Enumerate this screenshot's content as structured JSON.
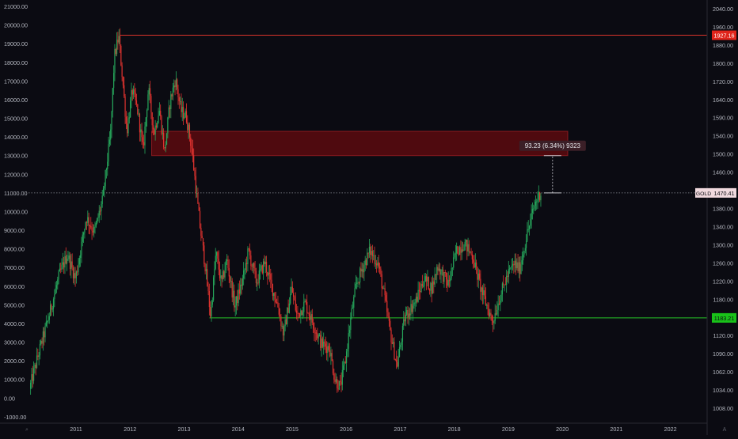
{
  "chart_data": {
    "type": "candlestick",
    "symbol": "GOLD",
    "colors": {
      "background": "#0b0b12",
      "up": "#26a65b",
      "down": "#e0332f",
      "axis_text": "#b2b5be",
      "resistance_line": "#d9342b",
      "support_line": "#27c527",
      "zone_fill": "#5c0a0f",
      "zone_border": "#8a1a1f",
      "price_tag": "#f0d9de",
      "measure_tag": "#3b1f27"
    },
    "left_axis": {
      "range": [
        -1300,
        21000
      ],
      "ticks": [
        "-1000.00",
        "0.00",
        "1000.00",
        "2000.00",
        "3000.00",
        "4000.00",
        "5000.00",
        "6000.00",
        "7000.00",
        "8000.00",
        "9000.00",
        "10000.00",
        "11000.00",
        "12000.00",
        "13000.00",
        "14000.00",
        "15000.00",
        "16000.00",
        "17000.00",
        "18000.00",
        "19000.00",
        "20000.00",
        "21000.00"
      ]
    },
    "right_axis": {
      "ticks": [
        "2040.00",
        "1960.00",
        "1880.00",
        "1800.00",
        "1720.00",
        "1640.00",
        "1590.00",
        "1540.00",
        "1500.00",
        "1460.00",
        "1420.00",
        "1380.00",
        "1340.00",
        "1300.00",
        "1260.00",
        "1220.00",
        "1180.00",
        "1150.00",
        "1120.00",
        "1090.00",
        "1062.00",
        "1034.00",
        "1008.00"
      ]
    },
    "x_axis": {
      "range": [
        2010.15,
        2022.68
      ],
      "ticks": [
        "2011",
        "2012",
        "2013",
        "2014",
        "2015",
        "2016",
        "2017",
        "2018",
        "2019",
        "2020",
        "2021",
        "2022"
      ]
    },
    "path_nodes": [
      [
        2010.15,
        500
      ],
      [
        2010.3,
        2200
      ],
      [
        2010.5,
        4300
      ],
      [
        2010.7,
        6600
      ],
      [
        2010.85,
        7700
      ],
      [
        2011.0,
        6400
      ],
      [
        2011.2,
        9700
      ],
      [
        2011.35,
        8900
      ],
      [
        2011.5,
        10600
      ],
      [
        2011.65,
        14200
      ],
      [
        2011.72,
        18300
      ],
      [
        2011.8,
        19400
      ],
      [
        2011.88,
        16800
      ],
      [
        2011.95,
        14300
      ],
      [
        2012.05,
        16500
      ],
      [
        2012.15,
        15400
      ],
      [
        2012.25,
        13300
      ],
      [
        2012.35,
        16600
      ],
      [
        2012.45,
        14200
      ],
      [
        2012.55,
        15500
      ],
      [
        2012.65,
        13200
      ],
      [
        2012.75,
        15900
      ],
      [
        2012.85,
        17100
      ],
      [
        2012.95,
        15400
      ],
      [
        2013.05,
        15100
      ],
      [
        2013.15,
        13400
      ],
      [
        2013.22,
        11500
      ],
      [
        2013.3,
        9300
      ],
      [
        2013.4,
        7100
      ],
      [
        2013.5,
        4400
      ],
      [
        2013.6,
        7800
      ],
      [
        2013.7,
        6100
      ],
      [
        2013.8,
        7400
      ],
      [
        2013.95,
        4900
      ],
      [
        2014.1,
        6400
      ],
      [
        2014.2,
        7900
      ],
      [
        2014.35,
        6200
      ],
      [
        2014.5,
        7300
      ],
      [
        2014.62,
        6100
      ],
      [
        2014.75,
        4900
      ],
      [
        2014.85,
        3400
      ],
      [
        2015.0,
        5900
      ],
      [
        2015.1,
        4400
      ],
      [
        2015.25,
        5100
      ],
      [
        2015.45,
        3600
      ],
      [
        2015.55,
        2900
      ],
      [
        2015.7,
        2700
      ],
      [
        2015.8,
        1000
      ],
      [
        2015.9,
        600
      ],
      [
        2016.0,
        2100
      ],
      [
        2016.1,
        4400
      ],
      [
        2016.2,
        6100
      ],
      [
        2016.3,
        6900
      ],
      [
        2016.45,
        7900
      ],
      [
        2016.6,
        7200
      ],
      [
        2016.72,
        5400
      ],
      [
        2016.82,
        3600
      ],
      [
        2016.95,
        1700
      ],
      [
        2017.1,
        4400
      ],
      [
        2017.3,
        5200
      ],
      [
        2017.45,
        6400
      ],
      [
        2017.6,
        5900
      ],
      [
        2017.7,
        7100
      ],
      [
        2017.9,
        6100
      ],
      [
        2018.05,
        7900
      ],
      [
        2018.2,
        8300
      ],
      [
        2018.35,
        7600
      ],
      [
        2018.5,
        5900
      ],
      [
        2018.62,
        4900
      ],
      [
        2018.72,
        4100
      ],
      [
        2018.85,
        5400
      ],
      [
        2019.0,
        6600
      ],
      [
        2019.12,
        7200
      ],
      [
        2019.22,
        6900
      ],
      [
        2019.35,
        8700
      ],
      [
        2019.5,
        10400
      ],
      [
        2019.6,
        11000
      ]
    ],
    "resistance": {
      "y_left": 19450,
      "label": "1927.16",
      "x_start": 2011.82
    },
    "support": {
      "y_left": 4300,
      "label": "1183.21",
      "x_start": 2013.47
    },
    "current_price": {
      "y_left": 11000,
      "label": "1470.41",
      "symbol": "GOLD"
    },
    "zone": {
      "x_range": [
        2012.4,
        2020.1
      ],
      "y_range": [
        13000,
        14300
      ]
    },
    "measure": {
      "x": 2019.82,
      "y_from": 11000,
      "y_to": 13000,
      "label": "93.23 (6.34%) 9323"
    }
  }
}
